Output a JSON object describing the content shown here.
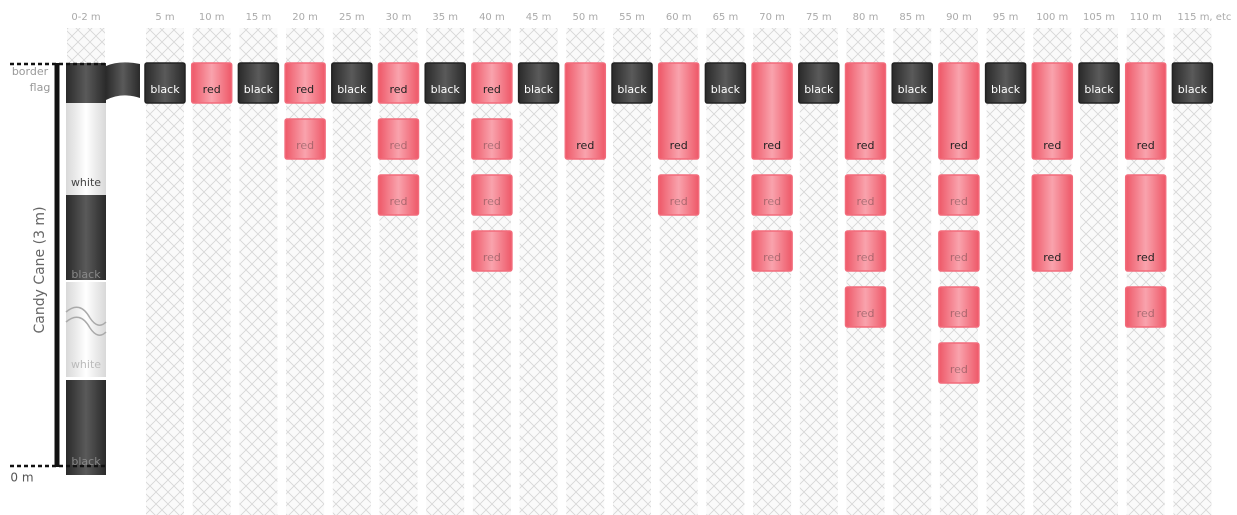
{
  "header": {
    "columns": [
      "0-2 m",
      "5 m",
      "10 m",
      "15 m",
      "20 m",
      "25 m",
      "30 m",
      "35 m",
      "40 m",
      "45 m",
      "50 m",
      "55 m",
      "60 m",
      "65 m",
      "70 m",
      "75 m",
      "80 m",
      "85 m",
      "90 m",
      "95 m",
      "100 m",
      "105 m",
      "110 m",
      "115 m, etc"
    ]
  },
  "pole": {
    "border_flag": [
      "border",
      "flag"
    ],
    "segments": [
      "white",
      "black",
      "white",
      "black"
    ],
    "title": "Candy Cane (3 m)",
    "base": "0 m"
  },
  "colors": {
    "red": "#f26b7b",
    "black": "#3b3b3b"
  },
  "markers": [
    [
      {
        "label": "black",
        "kind": "small"
      }
    ],
    [
      {
        "label": "red",
        "kind": "small"
      }
    ],
    [
      {
        "label": "black",
        "kind": "small"
      }
    ],
    [
      {
        "label": "red",
        "kind": "small"
      },
      {
        "label": "red",
        "kind": "small"
      }
    ],
    [
      {
        "label": "black",
        "kind": "small"
      }
    ],
    [
      {
        "label": "red",
        "kind": "small"
      },
      {
        "label": "red",
        "kind": "small"
      },
      {
        "label": "red",
        "kind": "small"
      }
    ],
    [
      {
        "label": "black",
        "kind": "small"
      }
    ],
    [
      {
        "label": "red",
        "kind": "small"
      },
      {
        "label": "red",
        "kind": "small"
      },
      {
        "label": "red",
        "kind": "small"
      },
      {
        "label": "red",
        "kind": "small"
      }
    ],
    [
      {
        "label": "black",
        "kind": "small"
      }
    ],
    [
      {
        "label": "red",
        "kind": "large"
      }
    ],
    [
      {
        "label": "black",
        "kind": "small"
      }
    ],
    [
      {
        "label": "red",
        "kind": "large"
      },
      {
        "label": "red",
        "kind": "small"
      }
    ],
    [
      {
        "label": "black",
        "kind": "small"
      }
    ],
    [
      {
        "label": "red",
        "kind": "large"
      },
      {
        "label": "red",
        "kind": "small"
      },
      {
        "label": "red",
        "kind": "small"
      }
    ],
    [
      {
        "label": "black",
        "kind": "small"
      }
    ],
    [
      {
        "label": "red",
        "kind": "large"
      },
      {
        "label": "red",
        "kind": "small"
      },
      {
        "label": "red",
        "kind": "small"
      },
      {
        "label": "red",
        "kind": "small"
      }
    ],
    [
      {
        "label": "black",
        "kind": "small"
      }
    ],
    [
      {
        "label": "red",
        "kind": "large"
      },
      {
        "label": "red",
        "kind": "small"
      },
      {
        "label": "red",
        "kind": "small"
      },
      {
        "label": "red",
        "kind": "small"
      },
      {
        "label": "red",
        "kind": "small"
      }
    ],
    [
      {
        "label": "black",
        "kind": "small"
      }
    ],
    [
      {
        "label": "red",
        "kind": "large"
      },
      {
        "label": "red",
        "kind": "large"
      }
    ],
    [
      {
        "label": "black",
        "kind": "small"
      }
    ],
    [
      {
        "label": "red",
        "kind": "large"
      },
      {
        "label": "red",
        "kind": "large"
      },
      {
        "label": "red",
        "kind": "small"
      }
    ],
    [
      {
        "label": "black",
        "kind": "small"
      }
    ]
  ]
}
